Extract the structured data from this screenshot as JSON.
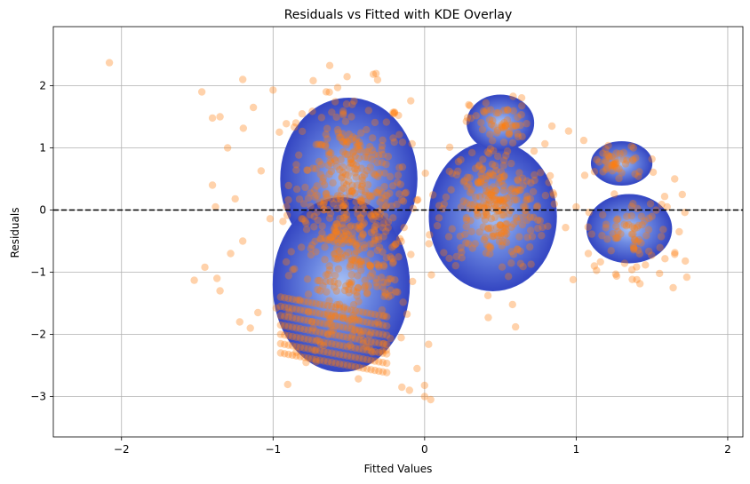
{
  "chart_data": {
    "type": "scatter",
    "title": "Residuals vs Fitted with KDE Overlay",
    "xlabel": "Fitted Values",
    "ylabel": "Residuals",
    "xlim": [
      -2.45,
      2.1
    ],
    "ylim": [
      -3.65,
      2.95
    ],
    "xticks": [
      -2,
      -1,
      0,
      1,
      2
    ],
    "yticks": [
      -3,
      -2,
      -1,
      0,
      1,
      2
    ],
    "xtick_labels": [
      "−2",
      "−1",
      "0",
      "1",
      "2"
    ],
    "ytick_labels": [
      "−3",
      "−2",
      "−1",
      "0",
      "1",
      "2"
    ],
    "grid": true,
    "reference_line": {
      "y": 0,
      "style": "dashed",
      "color": "#000000"
    },
    "colors": {
      "scatter": "#ff7f0e",
      "kde_dark": "#3a4ec8",
      "kde_light": "#8fb0f0"
    },
    "kde_regions": [
      {
        "name": "left-cluster-upper",
        "cx": -0.5,
        "cy": 0.5,
        "rx": 0.45,
        "ry": 1.3
      },
      {
        "name": "left-cluster-lower",
        "cx": -0.55,
        "cy": -1.2,
        "rx": 0.45,
        "ry": 1.4
      },
      {
        "name": "center-cluster",
        "cx": 0.45,
        "cy": -0.1,
        "rx": 0.42,
        "ry": 1.2
      },
      {
        "name": "center-top-lobe",
        "cx": 0.5,
        "cy": 1.4,
        "rx": 0.22,
        "ry": 0.45
      },
      {
        "name": "right-upper-cluster",
        "cx": 1.3,
        "cy": 0.75,
        "rx": 0.2,
        "ry": 0.35
      },
      {
        "name": "right-lower-cluster",
        "cx": 1.35,
        "cy": -0.3,
        "rx": 0.28,
        "ry": 0.55
      }
    ],
    "clusters": [
      {
        "cx": -0.5,
        "cy": 0.45,
        "sx": 0.2,
        "sy": 0.75,
        "n": 300
      },
      {
        "cx": -0.45,
        "cy": -0.9,
        "sx": 0.2,
        "sy": 0.75,
        "n": 260
      },
      {
        "cx": 0.45,
        "cy": 0.05,
        "sx": 0.17,
        "sy": 0.5,
        "n": 260
      },
      {
        "cx": 0.5,
        "cy": 1.4,
        "sx": 0.1,
        "sy": 0.2,
        "n": 55
      },
      {
        "cx": 1.28,
        "cy": 0.75,
        "sx": 0.1,
        "sy": 0.15,
        "n": 45
      },
      {
        "cx": 1.35,
        "cy": -0.4,
        "sx": 0.14,
        "sy": 0.3,
        "n": 75
      }
    ],
    "band_points": {
      "x_start": -0.95,
      "x_end": -0.25,
      "y_start": [
        -1.4,
        -1.55,
        -1.7,
        -1.85,
        -2.0,
        -2.15,
        -2.3
      ],
      "slope": -0.45,
      "count_per_band": 28
    },
    "outliers": [
      {
        "x": -2.08,
        "y": 2.37
      },
      {
        "x": -1.47,
        "y": 1.9
      },
      {
        "x": -1.4,
        "y": 1.48
      },
      {
        "x": -1.35,
        "y": 1.5
      },
      {
        "x": -1.3,
        "y": 1.0
      },
      {
        "x": -1.2,
        "y": 2.1
      },
      {
        "x": -1.13,
        "y": 1.65
      },
      {
        "x": -1.0,
        "y": 1.93
      },
      {
        "x": -1.52,
        "y": -1.13
      },
      {
        "x": -1.45,
        "y": -0.92
      },
      {
        "x": -1.37,
        "y": -1.1
      },
      {
        "x": -1.35,
        "y": -1.3
      },
      {
        "x": -1.4,
        "y": 0.4
      },
      {
        "x": -1.38,
        "y": 0.05
      },
      {
        "x": -1.25,
        "y": 0.18
      },
      {
        "x": -1.22,
        "y": -1.8
      },
      {
        "x": -1.15,
        "y": -1.9
      },
      {
        "x": -1.2,
        "y": -0.5
      },
      {
        "x": -1.28,
        "y": -0.7
      },
      {
        "x": -1.1,
        "y": -1.65
      },
      {
        "x": -0.05,
        "y": -2.55
      },
      {
        "x": -0.15,
        "y": -2.85
      },
      {
        "x": -0.1,
        "y": -2.9
      },
      {
        "x": 0.0,
        "y": -3.0
      },
      {
        "x": 0.04,
        "y": -3.05
      },
      {
        "x": 0.42,
        "y": -1.73
      },
      {
        "x": 0.58,
        "y": -1.52
      },
      {
        "x": 0.6,
        "y": -1.88
      },
      {
        "x": 0.84,
        "y": 1.35
      },
      {
        "x": 0.95,
        "y": 1.27
      },
      {
        "x": 1.05,
        "y": 1.12
      },
      {
        "x": 0.98,
        "y": -1.12
      },
      {
        "x": 1.0,
        "y": 0.05
      },
      {
        "x": 1.08,
        "y": -0.7
      },
      {
        "x": 1.12,
        "y": -0.9
      },
      {
        "x": 1.65,
        "y": 0.5
      },
      {
        "x": 1.7,
        "y": 0.25
      },
      {
        "x": 1.72,
        "y": -0.82
      },
      {
        "x": 1.73,
        "y": -1.08
      },
      {
        "x": 1.64,
        "y": -1.25
      },
      {
        "x": 1.55,
        "y": -1.02
      },
      {
        "x": 1.4,
        "y": -1.12
      },
      {
        "x": 1.68,
        "y": -0.35
      },
      {
        "x": 1.6,
        "y": 0.05
      },
      {
        "x": 1.5,
        "y": 0.82
      }
    ]
  }
}
